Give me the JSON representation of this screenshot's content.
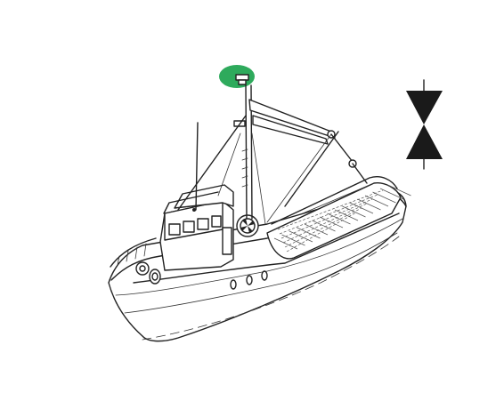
{
  "figure": {
    "subject": "fishing-vessel-trawling-signal",
    "colors": {
      "masthead_light": "#2eaa5c",
      "line": "#222222",
      "shape_fill": "#1a1a1a",
      "background": "#ffffff"
    },
    "signal_shape": "two-cones-points-together",
    "masthead_light_color_name": "green"
  }
}
